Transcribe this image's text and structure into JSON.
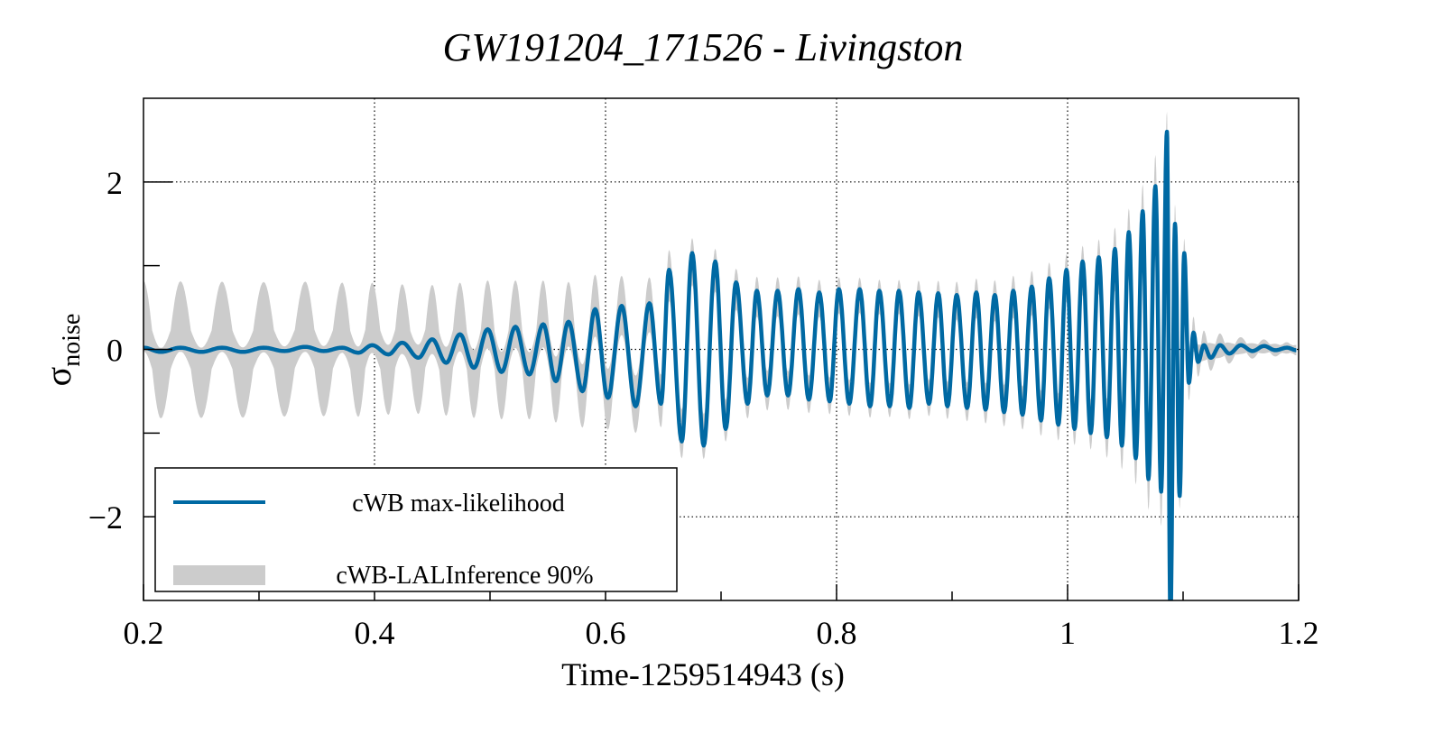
{
  "chart_data": {
    "type": "line",
    "title": "GW191204_171526 - Livingston",
    "xlabel": "Time-1259514943 (s)",
    "ylabel_main": "σ",
    "ylabel_sub": "noise",
    "xlim": [
      0.2,
      1.2
    ],
    "ylim": [
      -3,
      3
    ],
    "grid": true,
    "x_major_ticks": [
      0.2,
      0.4,
      0.6,
      0.8,
      1.0,
      1.2
    ],
    "x_tick_labels": [
      "0.2",
      "0.4",
      "0.6",
      "0.8",
      "1",
      "1.2"
    ],
    "x_minor_ticks": [
      0.3,
      0.5,
      0.7,
      0.9,
      1.1
    ],
    "y_major_ticks": [
      -2,
      0,
      2
    ],
    "y_tick_labels": [
      "−2",
      "0",
      "2"
    ],
    "y_minor_ticks": [
      -1,
      1
    ],
    "legend": {
      "placement": "bottom-left",
      "entries": [
        {
          "label": "cWB max-likelihood",
          "kind": "line",
          "color": "#0069a3"
        },
        {
          "label": "cWB-LALInference 90%",
          "kind": "band",
          "color": "#cccccc"
        }
      ]
    },
    "series": [
      {
        "name": "cWB max-likelihood",
        "color": "#0069a3",
        "extrema": [
          [
            0.2,
            0.02
          ],
          [
            0.215,
            -0.03
          ],
          [
            0.232,
            0.02
          ],
          [
            0.25,
            -0.03
          ],
          [
            0.268,
            0.02
          ],
          [
            0.286,
            -0.03
          ],
          [
            0.304,
            0.02
          ],
          [
            0.322,
            -0.02
          ],
          [
            0.34,
            0.03
          ],
          [
            0.356,
            -0.02
          ],
          [
            0.372,
            0.02
          ],
          [
            0.386,
            -0.04
          ],
          [
            0.398,
            0.05
          ],
          [
            0.412,
            -0.06
          ],
          [
            0.424,
            0.08
          ],
          [
            0.438,
            -0.1
          ],
          [
            0.45,
            0.12
          ],
          [
            0.462,
            -0.16
          ],
          [
            0.474,
            0.18
          ],
          [
            0.486,
            -0.22
          ],
          [
            0.498,
            0.24
          ],
          [
            0.51,
            -0.27
          ],
          [
            0.522,
            0.27
          ],
          [
            0.534,
            -0.3
          ],
          [
            0.546,
            0.3
          ],
          [
            0.557,
            -0.38
          ],
          [
            0.568,
            0.33
          ],
          [
            0.58,
            -0.5
          ],
          [
            0.591,
            0.48
          ],
          [
            0.602,
            -0.58
          ],
          [
            0.614,
            0.52
          ],
          [
            0.626,
            -0.68
          ],
          [
            0.638,
            0.55
          ],
          [
            0.648,
            -0.65
          ],
          [
            0.655,
            0.95
          ],
          [
            0.666,
            -1.1
          ],
          [
            0.675,
            1.15
          ],
          [
            0.685,
            -1.15
          ],
          [
            0.695,
            1.05
          ],
          [
            0.704,
            -0.95
          ],
          [
            0.713,
            0.8
          ],
          [
            0.723,
            -0.65
          ],
          [
            0.731,
            0.7
          ],
          [
            0.74,
            -0.55
          ],
          [
            0.749,
            0.7
          ],
          [
            0.758,
            -0.55
          ],
          [
            0.767,
            0.72
          ],
          [
            0.776,
            -0.6
          ],
          [
            0.785,
            0.68
          ],
          [
            0.794,
            -0.62
          ],
          [
            0.802,
            0.72
          ],
          [
            0.811,
            -0.65
          ],
          [
            0.82,
            0.72
          ],
          [
            0.829,
            -0.68
          ],
          [
            0.837,
            0.7
          ],
          [
            0.846,
            -0.68
          ],
          [
            0.854,
            0.7
          ],
          [
            0.863,
            -0.7
          ],
          [
            0.871,
            0.68
          ],
          [
            0.88,
            -0.65
          ],
          [
            0.888,
            0.67
          ],
          [
            0.896,
            -0.68
          ],
          [
            0.904,
            0.65
          ],
          [
            0.913,
            -0.7
          ],
          [
            0.921,
            0.68
          ],
          [
            0.929,
            -0.72
          ],
          [
            0.937,
            0.65
          ],
          [
            0.945,
            -0.75
          ],
          [
            0.953,
            0.7
          ],
          [
            0.961,
            -0.78
          ],
          [
            0.969,
            0.75
          ],
          [
            0.977,
            -0.85
          ],
          [
            0.984,
            0.85
          ],
          [
            0.992,
            -0.9
          ],
          [
            0.999,
            0.95
          ],
          [
            1.006,
            -0.95
          ],
          [
            1.013,
            1.05
          ],
          [
            1.02,
            -1.0
          ],
          [
            1.027,
            1.1
          ],
          [
            1.034,
            -1.05
          ],
          [
            1.041,
            1.2
          ],
          [
            1.047,
            -1.15
          ],
          [
            1.053,
            1.4
          ],
          [
            1.059,
            -1.3
          ],
          [
            1.065,
            1.65
          ],
          [
            1.07,
            -1.55
          ],
          [
            1.076,
            1.95
          ],
          [
            1.081,
            -1.7
          ],
          [
            1.086,
            2.6
          ],
          [
            1.089,
            -3.2
          ],
          [
            1.093,
            1.5
          ],
          [
            1.097,
            -1.75
          ],
          [
            1.101,
            1.15
          ],
          [
            1.105,
            -0.4
          ],
          [
            1.109,
            0.2
          ],
          [
            1.113,
            -0.15
          ],
          [
            1.118,
            0.05
          ],
          [
            1.124,
            -0.1
          ],
          [
            1.132,
            0.05
          ],
          [
            1.14,
            -0.05
          ],
          [
            1.15,
            0.05
          ],
          [
            1.16,
            -0.02
          ],
          [
            1.17,
            0.04
          ],
          [
            1.18,
            -0.01
          ],
          [
            1.19,
            0.02
          ],
          [
            1.198,
            -0.01
          ]
        ]
      },
      {
        "name": "cWB-LALInference 90%",
        "color": "#cccccc",
        "band_halfwidth": [
          [
            0.2,
            0.42
          ],
          [
            0.4,
            0.42
          ],
          [
            0.55,
            0.4
          ],
          [
            0.62,
            0.35
          ],
          [
            0.7,
            0.25
          ],
          [
            0.85,
            0.2
          ],
          [
            0.95,
            0.25
          ],
          [
            1.02,
            0.3
          ],
          [
            1.06,
            0.45
          ],
          [
            1.08,
            0.6
          ],
          [
            1.095,
            0.35
          ],
          [
            1.11,
            0.2
          ],
          [
            1.15,
            0.1
          ],
          [
            1.2,
            0.06
          ]
        ],
        "band_offset_amplitude": [
          [
            0.2,
            0.38
          ],
          [
            0.38,
            0.36
          ],
          [
            0.45,
            0.25
          ],
          [
            0.55,
            0.15
          ],
          [
            0.62,
            0.05
          ],
          [
            0.7,
            0.0
          ],
          [
            1.2,
            0.0
          ]
        ]
      }
    ]
  }
}
